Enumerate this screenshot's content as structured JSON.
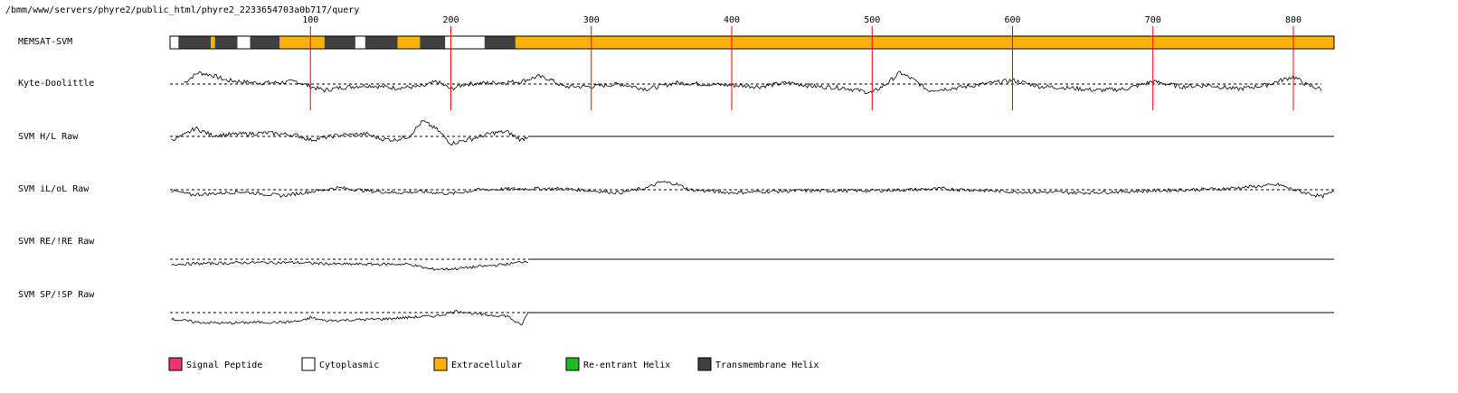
{
  "path_label": "/bmm/www/servers/phyre2/public_html/phyre2_2233654703a0b717/query",
  "colors": {
    "signal_peptide": "#ee3377",
    "cytoplasmic": "#ffffff",
    "extracellular": "#ffb000",
    "reentrant_helix": "#22b822",
    "transmembrane_helix": "#404040",
    "position_marker": "#ff0000"
  },
  "chart_data": {
    "type": "line",
    "sequence_length": 829,
    "x_ticks": [
      100,
      200,
      300,
      400,
      500,
      600,
      700,
      800
    ],
    "tracks": [
      {
        "name": "MEMSAT-SVM",
        "kind": "topology"
      },
      {
        "name": "Kyte-Doolittle",
        "kind": "profile"
      },
      {
        "name": "SVM H/L Raw",
        "kind": "profile"
      },
      {
        "name": "SVM iL/oL Raw",
        "kind": "profile"
      },
      {
        "name": "SVM RE/!RE Raw",
        "kind": "profile"
      },
      {
        "name": "SVM SP/!SP Raw",
        "kind": "profile"
      }
    ],
    "topology_segments": [
      {
        "start": 1,
        "end": 6,
        "type": "cytoplasmic"
      },
      {
        "start": 6,
        "end": 29,
        "type": "transmembrane_helix"
      },
      {
        "start": 29,
        "end": 32,
        "type": "extracellular"
      },
      {
        "start": 32,
        "end": 48,
        "type": "transmembrane_helix"
      },
      {
        "start": 48,
        "end": 57,
        "type": "cytoplasmic"
      },
      {
        "start": 57,
        "end": 78,
        "type": "transmembrane_helix"
      },
      {
        "start": 78,
        "end": 110,
        "type": "extracellular"
      },
      {
        "start": 110,
        "end": 132,
        "type": "transmembrane_helix"
      },
      {
        "start": 132,
        "end": 139,
        "type": "cytoplasmic"
      },
      {
        "start": 139,
        "end": 162,
        "type": "transmembrane_helix"
      },
      {
        "start": 162,
        "end": 178,
        "type": "extracellular"
      },
      {
        "start": 178,
        "end": 196,
        "type": "transmembrane_helix"
      },
      {
        "start": 196,
        "end": 224,
        "type": "cytoplasmic"
      },
      {
        "start": 224,
        "end": 246,
        "type": "transmembrane_helix"
      },
      {
        "start": 246,
        "end": 829,
        "type": "extracellular"
      }
    ],
    "kyte_doolittle": {
      "x_range": [
        10,
        820
      ],
      "baseline": 0,
      "points": [
        [
          10,
          0.1
        ],
        [
          20,
          0.9
        ],
        [
          30,
          0.7
        ],
        [
          40,
          0.3
        ],
        [
          50,
          0.2
        ],
        [
          60,
          0.1
        ],
        [
          75,
          0.1
        ],
        [
          90,
          0.2
        ],
        [
          100,
          -0.2
        ],
        [
          110,
          -0.5
        ],
        [
          120,
          -0.3
        ],
        [
          140,
          -0.1
        ],
        [
          160,
          -0.3
        ],
        [
          180,
          -0.2
        ],
        [
          190,
          0.2
        ],
        [
          200,
          -0.4
        ],
        [
          210,
          0.0
        ],
        [
          230,
          0.1
        ],
        [
          250,
          0.2
        ],
        [
          262,
          0.6
        ],
        [
          270,
          0.4
        ],
        [
          280,
          -0.2
        ],
        [
          300,
          -0.2
        ],
        [
          320,
          0.0
        ],
        [
          340,
          -0.4
        ],
        [
          360,
          0.1
        ],
        [
          380,
          0.0
        ],
        [
          400,
          -0.1
        ],
        [
          420,
          -0.2
        ],
        [
          440,
          0.1
        ],
        [
          460,
          -0.2
        ],
        [
          480,
          -0.3
        ],
        [
          500,
          -0.7
        ],
        [
          510,
          0.0
        ],
        [
          520,
          0.9
        ],
        [
          530,
          0.3
        ],
        [
          540,
          -0.5
        ],
        [
          560,
          -0.3
        ],
        [
          580,
          0.0
        ],
        [
          600,
          0.3
        ],
        [
          620,
          -0.2
        ],
        [
          640,
          -0.3
        ],
        [
          660,
          -0.5
        ],
        [
          680,
          -0.4
        ],
        [
          700,
          0.2
        ],
        [
          720,
          -0.2
        ],
        [
          740,
          -0.1
        ],
        [
          760,
          -0.4
        ],
        [
          780,
          -0.1
        ],
        [
          800,
          0.6
        ],
        [
          810,
          -0.1
        ],
        [
          820,
          -0.4
        ]
      ]
    },
    "svm_hl": {
      "x_range": [
        1,
        255
      ],
      "baseline": 0,
      "points": [
        [
          1,
          -0.3
        ],
        [
          10,
          0.1
        ],
        [
          18,
          0.7
        ],
        [
          30,
          0.1
        ],
        [
          50,
          0.2
        ],
        [
          70,
          0.3
        ],
        [
          90,
          0.1
        ],
        [
          100,
          -0.3
        ],
        [
          120,
          0.1
        ],
        [
          140,
          0.2
        ],
        [
          150,
          -0.2
        ],
        [
          160,
          -0.3
        ],
        [
          170,
          0.0
        ],
        [
          180,
          1.3
        ],
        [
          190,
          0.6
        ],
        [
          200,
          -0.6
        ],
        [
          215,
          -0.2
        ],
        [
          230,
          0.3
        ],
        [
          240,
          0.4
        ],
        [
          250,
          -0.3
        ],
        [
          255,
          0.0
        ]
      ],
      "flat_value": 0,
      "flat_from": 255
    },
    "svm_ilol": {
      "x_range": [
        1,
        829
      ],
      "baseline": 0,
      "points": [
        [
          1,
          -0.1
        ],
        [
          15,
          -0.5
        ],
        [
          30,
          -0.4
        ],
        [
          50,
          -0.2
        ],
        [
          80,
          -0.6
        ],
        [
          100,
          -0.2
        ],
        [
          120,
          0.2
        ],
        [
          140,
          -0.1
        ],
        [
          160,
          -0.3
        ],
        [
          180,
          -0.2
        ],
        [
          200,
          -0.4
        ],
        [
          220,
          0.0
        ],
        [
          250,
          0.1
        ],
        [
          280,
          0.1
        ],
        [
          300,
          -0.1
        ],
        [
          320,
          -0.3
        ],
        [
          340,
          0.2
        ],
        [
          350,
          0.8
        ],
        [
          360,
          0.6
        ],
        [
          370,
          0.0
        ],
        [
          400,
          -0.3
        ],
        [
          420,
          -0.2
        ],
        [
          450,
          -0.1
        ],
        [
          500,
          -0.1
        ],
        [
          550,
          0.1
        ],
        [
          600,
          -0.2
        ],
        [
          650,
          -0.3
        ],
        [
          700,
          -0.1
        ],
        [
          750,
          0.1
        ],
        [
          790,
          0.5
        ],
        [
          800,
          0.0
        ],
        [
          820,
          -0.7
        ],
        [
          829,
          -0.2
        ]
      ]
    },
    "svm_reref": {
      "x_range": [
        1,
        255
      ],
      "baseline": 0,
      "points": [
        [
          1,
          -0.6
        ],
        [
          30,
          -0.5
        ],
        [
          60,
          -0.4
        ],
        [
          90,
          -0.4
        ],
        [
          120,
          -0.6
        ],
        [
          150,
          -0.6
        ],
        [
          170,
          -0.6
        ],
        [
          185,
          -1.2
        ],
        [
          200,
          -1.2
        ],
        [
          220,
          -0.9
        ],
        [
          240,
          -0.6
        ],
        [
          255,
          -0.2
        ]
      ],
      "flat_value": 0,
      "flat_from": 255
    },
    "svm_spnsp": {
      "x_range": [
        1,
        255
      ],
      "baseline": 0,
      "points": [
        [
          1,
          -0.8
        ],
        [
          20,
          -1.2
        ],
        [
          40,
          -1.3
        ],
        [
          60,
          -1.2
        ],
        [
          80,
          -1.2
        ],
        [
          95,
          -1.0
        ],
        [
          100,
          -0.6
        ],
        [
          110,
          -1.0
        ],
        [
          130,
          -0.9
        ],
        [
          150,
          -0.8
        ],
        [
          170,
          -0.6
        ],
        [
          190,
          -0.4
        ],
        [
          205,
          0.2
        ],
        [
          215,
          -0.1
        ],
        [
          225,
          -0.3
        ],
        [
          240,
          -0.4
        ],
        [
          250,
          -1.6
        ],
        [
          255,
          0.0
        ]
      ],
      "flat_value": 0,
      "flat_from": 255
    }
  },
  "legend": [
    {
      "key": "signal_peptide",
      "label": "Signal Peptide"
    },
    {
      "key": "cytoplasmic",
      "label": "Cytoplasmic"
    },
    {
      "key": "extracellular",
      "label": "Extracellular"
    },
    {
      "key": "reentrant_helix",
      "label": "Re-entrant Helix"
    },
    {
      "key": "transmembrane_helix",
      "label": "Transmembrane Helix"
    }
  ]
}
